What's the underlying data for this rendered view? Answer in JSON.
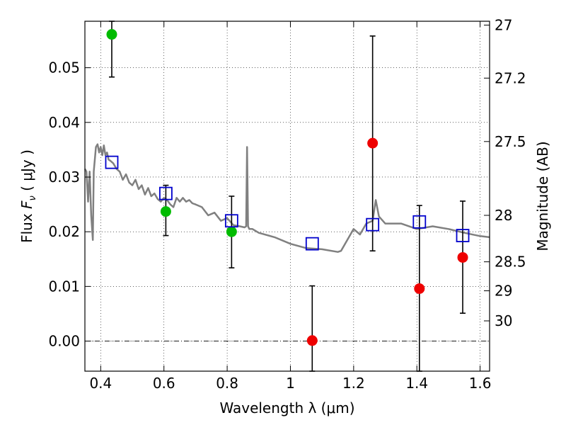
{
  "chart_data": {
    "type": "scatter",
    "title": "",
    "xlabel": "Wavelength  λ (μm)",
    "ylabel": "Flux  F_ν  ( μJy )",
    "ylabel_parts": {
      "pre": "Flux  ",
      "f": "F",
      "nu": "ν",
      "post": "  ( μJy )"
    },
    "y2label": "Magnitude (AB)",
    "xlim": [
      0.35,
      1.63
    ],
    "ylim": [
      -0.0055,
      0.0585
    ],
    "grid": true,
    "x_ticks": [
      0.4,
      0.6,
      0.8,
      1.0,
      1.2,
      1.4,
      1.6
    ],
    "x_tick_labels": [
      "0.4",
      "0.6",
      "0.8",
      "1",
      "1.2",
      "1.4",
      "1.6"
    ],
    "y_ticks": [
      0.0,
      0.01,
      0.02,
      0.03,
      0.04,
      0.05
    ],
    "y_tick_labels": [
      "0.00",
      "0.01",
      "0.02",
      "0.03",
      "0.04",
      "0.05"
    ],
    "y2_ticks": [
      {
        "flux": 0.0578,
        "label": "27"
      },
      {
        "flux": 0.0481,
        "label": "27.2"
      },
      {
        "flux": 0.0365,
        "label": "27.5"
      },
      {
        "flux": 0.023,
        "label": "28"
      },
      {
        "flux": 0.0145,
        "label": "28.5"
      },
      {
        "flux": 0.0092,
        "label": "29"
      },
      {
        "flux": 0.0037,
        "label": "30"
      }
    ],
    "zero_line": 0.0,
    "colors": {
      "model": "#808080",
      "detected": "#00bb00",
      "undetected": "#ee0000",
      "model_flux": "#0000cc",
      "error": "#000000"
    },
    "series": [
      {
        "name": "model_sed",
        "type": "line",
        "x": [
          0.35,
          0.355,
          0.36,
          0.365,
          0.37,
          0.375,
          0.378,
          0.385,
          0.39,
          0.395,
          0.4,
          0.405,
          0.41,
          0.415,
          0.42,
          0.425,
          0.43,
          0.44,
          0.45,
          0.46,
          0.47,
          0.48,
          0.49,
          0.5,
          0.51,
          0.52,
          0.53,
          0.54,
          0.55,
          0.56,
          0.57,
          0.58,
          0.59,
          0.6,
          0.61,
          0.62,
          0.63,
          0.64,
          0.65,
          0.66,
          0.67,
          0.68,
          0.69,
          0.7,
          0.72,
          0.74,
          0.76,
          0.78,
          0.8,
          0.82,
          0.84,
          0.855,
          0.86,
          0.863,
          0.866,
          0.87,
          0.88,
          0.9,
          0.95,
          1.0,
          1.05,
          1.1,
          1.15,
          1.16,
          1.18,
          1.2,
          1.22,
          1.24,
          1.26,
          1.27,
          1.28,
          1.3,
          1.35,
          1.4,
          1.45,
          1.5,
          1.55,
          1.6,
          1.63
        ],
        "y": [
          0.0315,
          0.031,
          0.0255,
          0.031,
          0.023,
          0.0185,
          0.031,
          0.0355,
          0.036,
          0.0345,
          0.0355,
          0.034,
          0.0358,
          0.034,
          0.0345,
          0.0332,
          0.033,
          0.0325,
          0.0315,
          0.031,
          0.0295,
          0.0305,
          0.029,
          0.0285,
          0.0295,
          0.0278,
          0.0285,
          0.0268,
          0.028,
          0.0265,
          0.027,
          0.026,
          0.0255,
          0.0262,
          0.0258,
          0.025,
          0.0245,
          0.0262,
          0.0255,
          0.0262,
          0.0255,
          0.0258,
          0.0252,
          0.025,
          0.0245,
          0.023,
          0.0235,
          0.022,
          0.0225,
          0.0212,
          0.021,
          0.0208,
          0.021,
          0.0355,
          0.021,
          0.0205,
          0.0205,
          0.0198,
          0.019,
          0.0178,
          0.017,
          0.0168,
          0.0163,
          0.0165,
          0.0185,
          0.0205,
          0.0195,
          0.0215,
          0.022,
          0.0258,
          0.0228,
          0.0215,
          0.0215,
          0.0205,
          0.021,
          0.0205,
          0.0198,
          0.0192,
          0.019
        ]
      },
      {
        "name": "observed_detected",
        "type": "scatter",
        "points": [
          {
            "x": 0.435,
            "y": 0.0561,
            "err_lo": 0.0483,
            "err_hi": 0.0585
          },
          {
            "x": 0.606,
            "y": 0.0237,
            "err_lo": 0.0193,
            "err_hi": 0.0285
          },
          {
            "x": 0.814,
            "y": 0.02,
            "err_lo": 0.0134,
            "err_hi": 0.0265
          }
        ]
      },
      {
        "name": "observed_undetected",
        "type": "scatter",
        "points": [
          {
            "x": 1.069,
            "y": 0.0001,
            "err_lo": -0.0055,
            "err_hi": 0.0101
          },
          {
            "x": 1.26,
            "y": 0.0362,
            "err_lo": 0.0165,
            "err_hi": 0.0558
          },
          {
            "x": 1.408,
            "y": 0.0096,
            "err_lo": -0.0055,
            "err_hi": 0.0248
          },
          {
            "x": 1.545,
            "y": 0.0153,
            "err_lo": 0.0051,
            "err_hi": 0.0256
          }
        ]
      },
      {
        "name": "model_flux",
        "type": "scatter",
        "x": [
          0.435,
          0.606,
          0.814,
          1.069,
          1.26,
          1.408,
          1.545
        ],
        "y": [
          0.0327,
          0.027,
          0.022,
          0.0178,
          0.0213,
          0.0218,
          0.0193
        ]
      }
    ]
  }
}
